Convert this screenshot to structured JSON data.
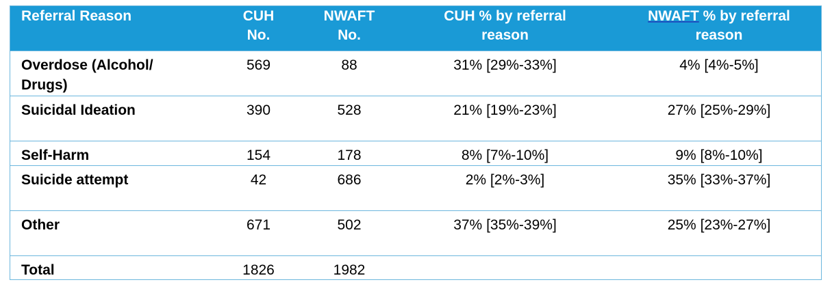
{
  "table": {
    "headers": {
      "reason": "Referral Reason",
      "cuh_no_line1": "CUH",
      "cuh_no_line2": "No.",
      "nwaft_no_line1": "NWAFT",
      "nwaft_no_line2": "No.",
      "cuh_pct_line1": "CUH % by referral",
      "cuh_pct_line2": "reason",
      "nwaft_pct_line1_a": "NWAFT",
      "nwaft_pct_line1_b": " % by referral",
      "nwaft_pct_line2": "reason"
    },
    "rows": [
      {
        "reason_line1": "Overdose (Alcohol/",
        "reason_line2": "Drugs)",
        "cuh_no": "569",
        "nwaft_no": "88",
        "cuh_pct": "31% [29%-33%]",
        "nwaft_pct": "4% [4%-5%]"
      },
      {
        "reason_line1": "Suicidal Ideation",
        "reason_line2": "",
        "cuh_no": "390",
        "nwaft_no": "528",
        "cuh_pct": "21% [19%-23%]",
        "nwaft_pct": "27% [25%-29%]"
      },
      {
        "reason_line1": "Self-Harm",
        "reason_line2": "",
        "cuh_no": "154",
        "nwaft_no": "178",
        "cuh_pct": "8% [7%-10%]",
        "nwaft_pct": "9% [8%-10%]"
      },
      {
        "reason_line1": "Suicide attempt",
        "reason_line2": "",
        "cuh_no": "42",
        "nwaft_no": "686",
        "cuh_pct": "2% [2%-3%]",
        "nwaft_pct": "35% [33%-37%]"
      },
      {
        "reason_line1": "Other",
        "reason_line2": "",
        "cuh_no": "671",
        "nwaft_no": "502",
        "cuh_pct": "37% [35%-39%]",
        "nwaft_pct": "25% [23%-27%]"
      }
    ],
    "total": {
      "label": "Total",
      "cuh_no": "1826",
      "nwaft_no": "1982",
      "cuh_pct": "",
      "nwaft_pct": ""
    }
  },
  "colors": {
    "header_background": "#1a9ad6",
    "header_text": "#ffffff",
    "grid_line": "#6bb6dd"
  }
}
